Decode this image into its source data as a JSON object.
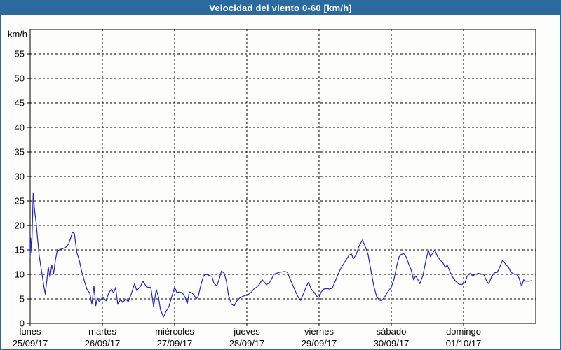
{
  "window": {
    "title": "Velocidad del viento 0-60 [km/h]",
    "titlebar_color": "#2a6a9e",
    "frame_color": "#2a6a9e"
  },
  "chart_data": {
    "type": "line",
    "title": "Velocidad del viento 0-60 [km/h]",
    "ylabel": "km/h",
    "xlabel": "",
    "ylim": [
      0,
      60
    ],
    "xlim": [
      0,
      168
    ],
    "x_unit": "hours",
    "grid": "dashed",
    "legend": "none",
    "line_color": "#2424c0",
    "yticks": [
      0,
      5,
      10,
      15,
      20,
      25,
      30,
      35,
      40,
      45,
      50,
      55
    ],
    "day_boundaries_hours": [
      24,
      48,
      72,
      96,
      120,
      144
    ],
    "days": [
      {
        "name": "lunes",
        "date": "25/09/17",
        "hour": 0
      },
      {
        "name": "martes",
        "date": "26/09/17",
        "hour": 24
      },
      {
        "name": "miércoles",
        "date": "27/09/17",
        "hour": 48
      },
      {
        "name": "jueves",
        "date": "28/09/17",
        "hour": 72
      },
      {
        "name": "viernes",
        "date": "29/09/17",
        "hour": 96
      },
      {
        "name": "sábado",
        "date": "30/09/17",
        "hour": 120
      },
      {
        "name": "domingo",
        "date": "01/10/17",
        "hour": 144
      }
    ],
    "series": [
      {
        "name": "Velocidad del viento [km/h]",
        "points": [
          [
            0,
            13.5
          ],
          [
            0.2,
            17.4
          ],
          [
            0.5,
            14.5
          ],
          [
            1,
            26.5
          ],
          [
            1.5,
            23
          ],
          [
            2,
            20.5
          ],
          [
            2.5,
            17
          ],
          [
            3,
            13.8
          ],
          [
            3.5,
            11.8
          ],
          [
            4,
            9.8
          ],
          [
            4.5,
            7.8
          ],
          [
            5,
            6
          ],
          [
            5.5,
            8.5
          ],
          [
            6,
            11.5
          ],
          [
            6.6,
            9.4
          ],
          [
            7.2,
            11.9
          ],
          [
            7.8,
            10.2
          ],
          [
            8.4,
            13
          ],
          [
            9,
            14.8
          ],
          [
            10,
            15.1
          ],
          [
            11,
            15.3
          ],
          [
            12,
            15.6
          ],
          [
            12.8,
            16.2
          ],
          [
            13.5,
            17.5
          ],
          [
            14,
            18.6
          ],
          [
            14.7,
            18.3
          ],
          [
            15.5,
            14.5
          ],
          [
            16.3,
            12.9
          ],
          [
            17,
            10.9
          ],
          [
            18,
            8.6
          ],
          [
            19,
            6.8
          ],
          [
            19.8,
            6.2
          ],
          [
            20.5,
            3.9
          ],
          [
            21.2,
            7.6
          ],
          [
            21.8,
            3.6
          ],
          [
            22.3,
            5.2
          ],
          [
            23,
            4.4
          ],
          [
            23.6,
            5
          ],
          [
            24.2,
            5.4
          ],
          [
            25.2,
            4.6
          ],
          [
            26.1,
            6.2
          ],
          [
            27,
            7
          ],
          [
            27.7,
            6.2
          ],
          [
            28.4,
            7.3
          ],
          [
            29.1,
            3.9
          ],
          [
            30.1,
            4.9
          ],
          [
            30.8,
            4.2
          ],
          [
            31.7,
            5
          ],
          [
            32.6,
            4.4
          ],
          [
            33.6,
            6
          ],
          [
            34.7,
            8.1
          ],
          [
            35.4,
            6.7
          ],
          [
            36.6,
            7.5
          ],
          [
            37.5,
            8.6
          ],
          [
            38.7,
            7.4
          ],
          [
            40.1,
            7.3
          ],
          [
            41,
            3.4
          ],
          [
            41.9,
            6.9
          ],
          [
            42.6,
            5.5
          ],
          [
            43.3,
            2.8
          ],
          [
            44.3,
            1.3
          ],
          [
            45.2,
            2.5
          ],
          [
            46.1,
            3.4
          ],
          [
            47.1,
            5.5
          ],
          [
            48,
            7.4
          ],
          [
            48.7,
            6.3
          ],
          [
            49.6,
            6.4
          ],
          [
            50.6,
            6.2
          ],
          [
            51.5,
            5.3
          ],
          [
            52.2,
            4
          ],
          [
            52.9,
            6.4
          ],
          [
            53.8,
            6.2
          ],
          [
            54.5,
            5.7
          ],
          [
            55.2,
            5
          ],
          [
            55.9,
            5.6
          ],
          [
            56.6,
            7.5
          ],
          [
            57.6,
            9.7
          ],
          [
            58.5,
            10
          ],
          [
            59.4,
            9.8
          ],
          [
            60.4,
            9.6
          ],
          [
            61,
            8.3
          ],
          [
            62,
            7.6
          ],
          [
            62.9,
            9.2
          ],
          [
            63.6,
            10.7
          ],
          [
            64.5,
            10.2
          ],
          [
            65.2,
            8.6
          ],
          [
            65.9,
            5.7
          ],
          [
            66.9,
            3.9
          ],
          [
            67.8,
            3.6
          ],
          [
            68.7,
            4.6
          ],
          [
            69.7,
            5.2
          ],
          [
            70.6,
            5.5
          ],
          [
            71.5,
            5.7
          ],
          [
            72.5,
            5.9
          ],
          [
            73.4,
            6.3
          ],
          [
            74.3,
            7
          ],
          [
            75.3,
            7.4
          ],
          [
            76.2,
            8
          ],
          [
            77.1,
            8.9
          ],
          [
            77.8,
            8.4
          ],
          [
            78.5,
            7.9
          ],
          [
            79.5,
            8.3
          ],
          [
            80.2,
            9
          ],
          [
            80.9,
            10
          ],
          [
            81.8,
            10.2
          ],
          [
            82.7,
            10.4
          ],
          [
            83.7,
            10.5
          ],
          [
            84.6,
            10.6
          ],
          [
            85.5,
            10.4
          ],
          [
            86.4,
            9
          ],
          [
            87.4,
            7.6
          ],
          [
            88.3,
            6.3
          ],
          [
            89.2,
            5.2
          ],
          [
            89.9,
            4.7
          ],
          [
            90.9,
            6.2
          ],
          [
            91.8,
            7.6
          ],
          [
            92.5,
            8.4
          ],
          [
            93.4,
            7
          ],
          [
            94.4,
            6.3
          ],
          [
            95.3,
            5.5
          ],
          [
            96,
            5.3
          ],
          [
            96.7,
            6.4
          ],
          [
            97.6,
            7
          ],
          [
            98.6,
            7.1
          ],
          [
            99.5,
            7
          ],
          [
            100.4,
            7.2
          ],
          [
            101.3,
            8.5
          ],
          [
            102.3,
            10
          ],
          [
            103.2,
            11.2
          ],
          [
            104.1,
            12.1
          ],
          [
            105.1,
            13.1
          ],
          [
            106,
            13.9
          ],
          [
            106.7,
            14.2
          ],
          [
            107.4,
            13.2
          ],
          [
            108.3,
            14
          ],
          [
            109.3,
            15.8
          ],
          [
            110.4,
            17
          ],
          [
            111.4,
            15.6
          ],
          [
            112.3,
            14
          ],
          [
            113.2,
            10.9
          ],
          [
            114.2,
            7.6
          ],
          [
            115.1,
            5.5
          ],
          [
            116,
            4.8
          ],
          [
            116.7,
            4.6
          ],
          [
            117.7,
            5.3
          ],
          [
            118.6,
            6.2
          ],
          [
            119.3,
            6.8
          ],
          [
            120,
            7.4
          ],
          [
            120.9,
            9
          ],
          [
            121.9,
            12
          ],
          [
            122.6,
            13.6
          ],
          [
            123.3,
            14.1
          ],
          [
            124.2,
            14.2
          ],
          [
            124.9,
            13.6
          ],
          [
            125.8,
            12.1
          ],
          [
            126.5,
            11.1
          ],
          [
            127.4,
            8.9
          ],
          [
            128.1,
            9.7
          ],
          [
            129.1,
            8.6
          ],
          [
            129.5,
            8.1
          ],
          [
            130.5,
            9.8
          ],
          [
            131.4,
            12.5
          ],
          [
            132.3,
            15
          ],
          [
            133,
            13.6
          ],
          [
            133.7,
            14.3
          ],
          [
            134.4,
            15
          ],
          [
            135.4,
            13.6
          ],
          [
            136.3,
            12.9
          ],
          [
            137.2,
            12.3
          ],
          [
            137.9,
            11.4
          ],
          [
            138.6,
            11.9
          ],
          [
            139.6,
            10.4
          ],
          [
            140.5,
            9.3
          ],
          [
            141.4,
            8.6
          ],
          [
            142.4,
            8
          ],
          [
            143.3,
            7.9
          ],
          [
            144.5,
            8.3
          ],
          [
            145.2,
            9.6
          ],
          [
            146.1,
            10.2
          ],
          [
            147,
            9.7
          ],
          [
            148,
            10
          ],
          [
            148.9,
            10.2
          ],
          [
            149.8,
            10.1
          ],
          [
            150.7,
            10
          ],
          [
            151.7,
            8.6
          ],
          [
            152.4,
            8.1
          ],
          [
            153.3,
            9.5
          ],
          [
            154.2,
            10.3
          ],
          [
            155.2,
            10.4
          ],
          [
            156.1,
            11.6
          ],
          [
            157,
            12.9
          ],
          [
            157.9,
            12.1
          ],
          [
            158.9,
            11.5
          ],
          [
            159.8,
            10.4
          ],
          [
            160.7,
            10.1
          ],
          [
            161.7,
            10
          ],
          [
            162.4,
            9.3
          ],
          [
            163.3,
            7.6
          ],
          [
            164,
            8.9
          ],
          [
            164.7,
            8.6
          ],
          [
            165.6,
            8.6
          ],
          [
            166.6,
            8.7
          ]
        ]
      }
    ]
  }
}
